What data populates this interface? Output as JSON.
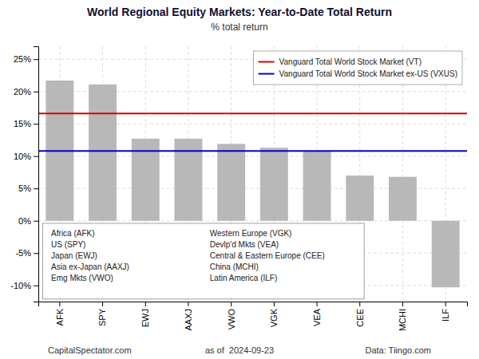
{
  "chart_data": {
    "type": "bar",
    "title": "World Regional Equity Markets: Year-to-Date Total Return",
    "subtitle": "% total return",
    "categories": [
      "AFK",
      "SPY",
      "EWJ",
      "AAXJ",
      "VWO",
      "VGK",
      "VEA",
      "CEE",
      "MCHI",
      "ILF"
    ],
    "values": [
      21.7,
      21.1,
      12.7,
      12.7,
      11.9,
      11.3,
      10.8,
      7.0,
      6.8,
      -10.3
    ],
    "color": "#b8b8b8",
    "ylim": [
      -12.5,
      27
    ],
    "yticks": [
      {
        "value": -10,
        "label": "-10%"
      },
      {
        "value": -5,
        "label": "-5%"
      },
      {
        "value": 0,
        "label": "0%"
      },
      {
        "value": 5,
        "label": "5%"
      },
      {
        "value": 10,
        "label": "10%"
      },
      {
        "value": 15,
        "label": "15%"
      },
      {
        "value": 20,
        "label": "20%"
      },
      {
        "value": 25,
        "label": "25%"
      }
    ],
    "grid": true,
    "legend": "upper right",
    "reference_lines": [
      {
        "name": "Vanguard Total World Stock Market (VT)",
        "value": 16.6,
        "color": "#dd0000"
      },
      {
        "name": "Vanguard Total World Stock Market ex-US (VXUS)",
        "value": 10.8,
        "color": "#0000cc"
      }
    ],
    "annotations": [
      [
        "Africa (AFK)",
        "US (SPY)",
        "Japan (EWJ)",
        "Asia ex-Japan (AAXJ)",
        "Emg Mkts (VWO)"
      ],
      [
        "Western Europe (VGK)",
        "Devlp'd Mkts (VEA)",
        "Central & Eastern Europe (CEE)",
        "China (MCHI)",
        "Latin America (ILF)"
      ]
    ],
    "footer": [
      "CapitalSpectator.com",
      "as of  2024-09-23",
      "Data: Tiingo.com"
    ]
  }
}
